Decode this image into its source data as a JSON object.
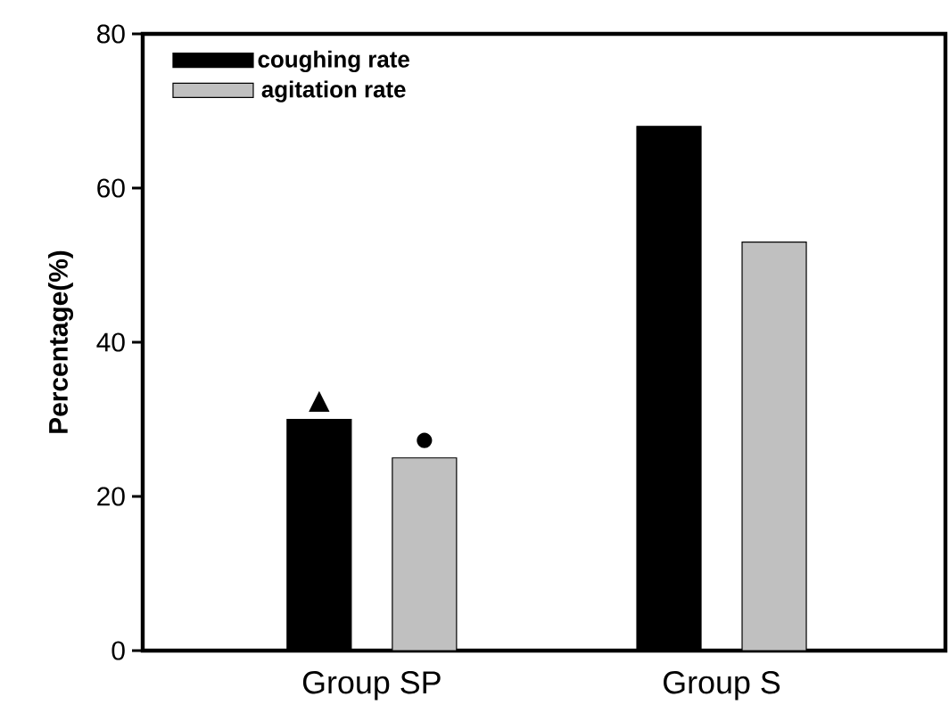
{
  "chart_data": {
    "type": "bar",
    "ylabel": "Percentage(%)",
    "categories": [
      "Group SP",
      "Group S"
    ],
    "series": [
      {
        "name": "coughing rate",
        "color": "#000000",
        "values": [
          30,
          68
        ]
      },
      {
        "name": "agitation rate",
        "color": "#c0c0c0",
        "values": [
          25,
          53
        ]
      }
    ],
    "ylim": [
      0,
      80
    ],
    "yticks": [
      0,
      20,
      40,
      60,
      80
    ],
    "legend": "top left",
    "annotations": [
      "▲",
      "●"
    ]
  }
}
